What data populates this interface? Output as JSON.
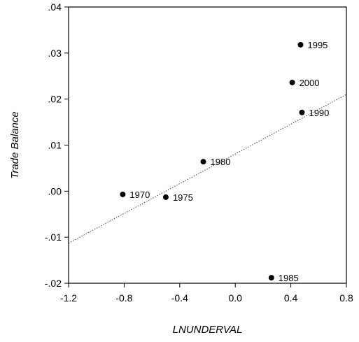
{
  "chart_data": {
    "type": "scatter",
    "title": "",
    "xlabel": "LNUNDERVAL",
    "ylabel": "Trade Balance",
    "xlim": [
      -1.2,
      0.8
    ],
    "ylim": [
      -0.02,
      0.04
    ],
    "x_ticks": [
      -1.2,
      -0.8,
      -0.4,
      0.0,
      0.4,
      0.8
    ],
    "x_tick_labels": [
      "-1.2",
      "-0.8",
      "-0.4",
      "0.0",
      "0.4",
      "0.8"
    ],
    "y_ticks": [
      -0.02,
      -0.01,
      0.0,
      0.01,
      0.02,
      0.03,
      0.04
    ],
    "y_tick_labels": [
      "-.02",
      "-.01",
      ".00",
      ".01",
      ".02",
      ".03",
      ".04"
    ],
    "grid": false,
    "points": [
      {
        "label": "1970",
        "x": -0.81,
        "y": -0.0007
      },
      {
        "label": "1975",
        "x": -0.5,
        "y": -0.0013
      },
      {
        "label": "1980",
        "x": -0.23,
        "y": 0.0064
      },
      {
        "label": "1985",
        "x": 0.26,
        "y": -0.0188
      },
      {
        "label": "1990",
        "x": 0.48,
        "y": 0.0171
      },
      {
        "label": "1995",
        "x": 0.47,
        "y": 0.0318
      },
      {
        "label": "2000",
        "x": 0.41,
        "y": 0.0236
      }
    ],
    "fit_line": {
      "style": "dotted",
      "x": [
        -1.2,
        0.8
      ],
      "y": [
        -0.0113,
        0.021
      ]
    }
  }
}
